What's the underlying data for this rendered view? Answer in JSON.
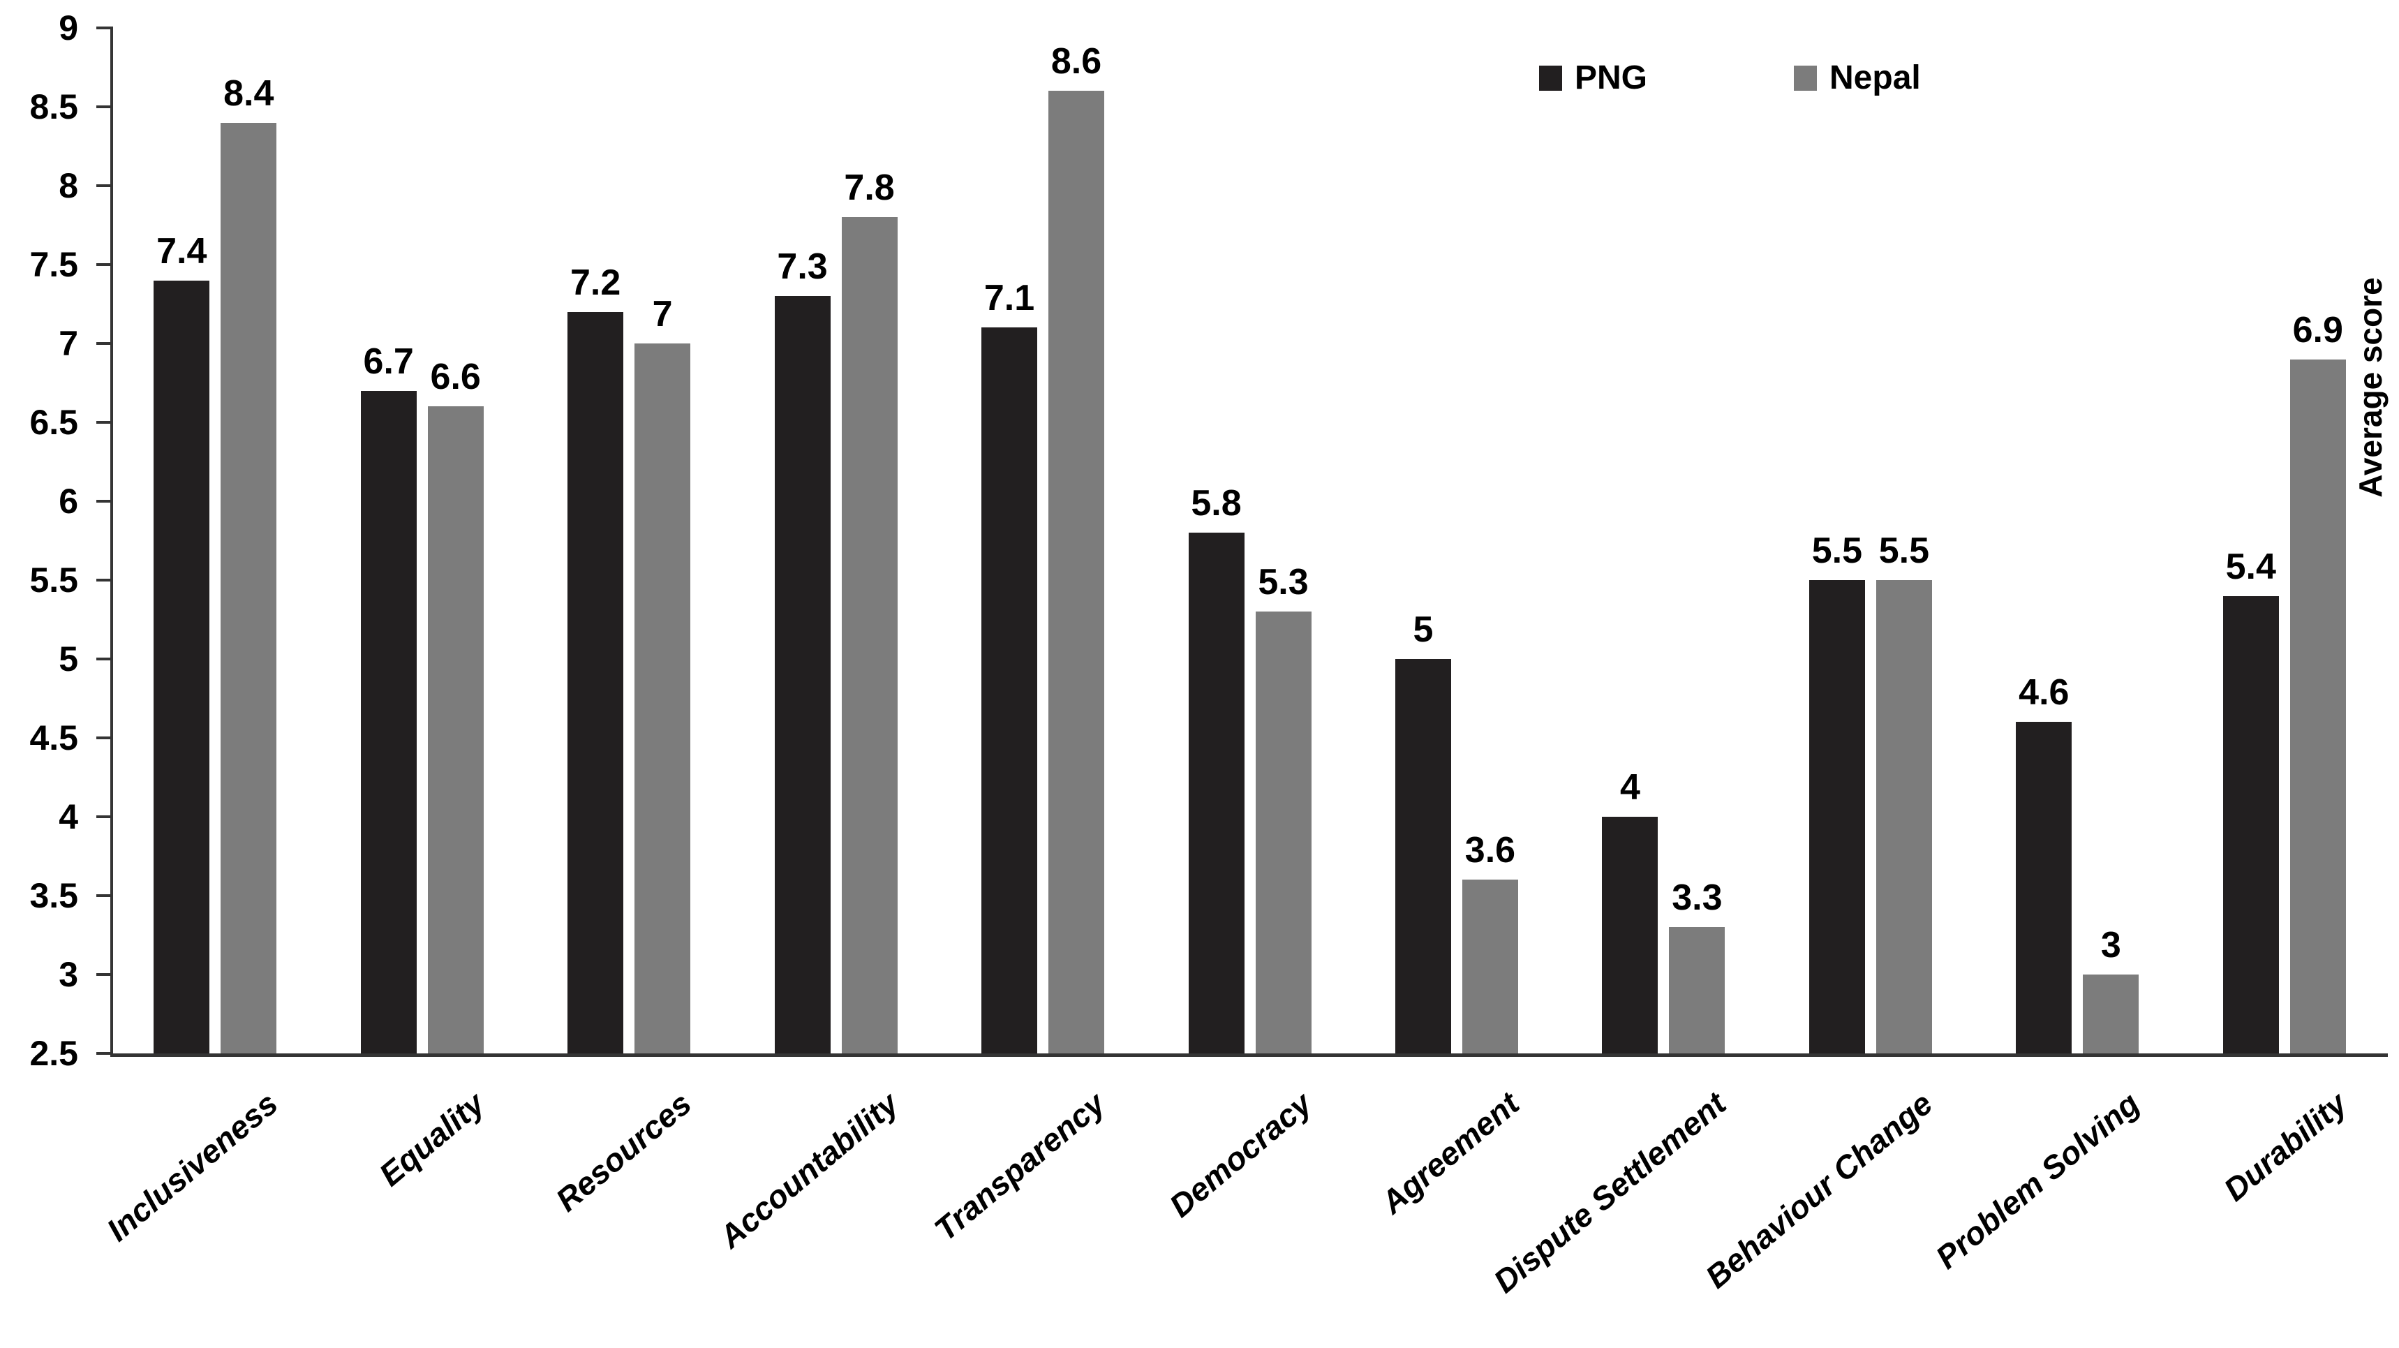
{
  "figure": {
    "background_color": "#ffffff",
    "text_color": "#000000",
    "axis_color": "#343434"
  },
  "legend": {
    "position": "top-right",
    "items": [
      {
        "label": "PNG",
        "color": "#221f20"
      },
      {
        "label": "Nepal",
        "color": "#7c7c7c"
      }
    ]
  },
  "y_axis": {
    "title": "Average score",
    "tick_labels": [
      "9",
      "8.5",
      "8",
      "7.5",
      "7",
      "6.5",
      "6",
      "5.5",
      "5",
      "4.5",
      "4",
      "3.5",
      "3",
      "2.5"
    ]
  },
  "chart_data": {
    "type": "bar",
    "title": "",
    "xlabel": "",
    "ylabel": "Average score",
    "ylim": [
      2.5,
      9
    ],
    "ytick_step": 0.5,
    "grid": false,
    "legend_position": "top-right",
    "bar_value_labels": true,
    "categories": [
      "Inclusiveness",
      "Equality",
      "Resources",
      "Accountability",
      "Transparency",
      "Democracy",
      "Agreement",
      "Dispute Settlement",
      "Behaviour Change",
      "Problem Solving",
      "Durability"
    ],
    "series": [
      {
        "name": "PNG",
        "color": "#221f20",
        "values": [
          7.4,
          6.7,
          7.2,
          7.3,
          7.1,
          5.8,
          5,
          4,
          5.5,
          4.6,
          5.4
        ],
        "labels": [
          "7.4",
          "6.7",
          "7.2",
          "7.3",
          "7.1",
          "5.8",
          "5",
          "4",
          "5.5",
          "4.6",
          "5.4"
        ]
      },
      {
        "name": "Nepal",
        "color": "#7c7c7c",
        "values": [
          8.4,
          6.6,
          7,
          7.8,
          8.6,
          5.3,
          3.6,
          3.3,
          5.5,
          3,
          6.9
        ],
        "labels": [
          "8.4",
          "6.6",
          "7",
          "7.8",
          "8.6",
          "5.3",
          "3.6",
          "3.3",
          "5.5",
          "3",
          "6.9"
        ]
      }
    ]
  }
}
